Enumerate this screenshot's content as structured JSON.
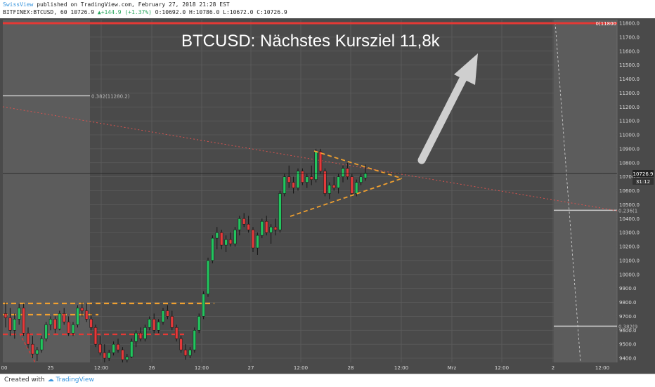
{
  "header": {
    "brand": "SwissView",
    "published": "published on TradingView.com, February 27, 2018 21:28 EST",
    "symbol": "BITFINEX:BTCUSD, 60",
    "last": "10726.9",
    "change": "+144.9 (+1.37%)",
    "ohlc": "O:10692.0 H:10786.0 L:10672.0 C:10726.9"
  },
  "footer": {
    "created_with": "Created with",
    "tv_logo": "TradingView"
  },
  "chart_data": {
    "type": "candlestick",
    "title": "BTCUSD: Nächstes Kursziel 11,8k",
    "ylim": [
      9370,
      11830
    ],
    "y_ticks": [
      9400,
      9500,
      9600,
      9700,
      9800,
      9900,
      10000,
      10100,
      10200,
      10300,
      10400,
      10500,
      10600,
      10700,
      10800,
      10900,
      11000,
      11100,
      11200,
      11300,
      11400,
      11500,
      11600,
      11700,
      11800
    ],
    "x_ticks": [
      "00",
      "25",
      "12:00",
      "26",
      "12:00",
      "27",
      "12:00",
      "28",
      "12:00",
      "Mrz",
      "12:00",
      "2",
      "12:00"
    ],
    "last_price": {
      "value": 10726.9,
      "label": "10726.9",
      "countdown": "31:12"
    },
    "target_level": {
      "value": 11800,
      "label": "0(11800"
    },
    "fib_levels": [
      {
        "label": "0.382(11280.2)",
        "value": 11280.2
      },
      {
        "label": "0.236(1",
        "value": 10460
      },
      {
        "label": "0.382(9",
        "value": 9630
      }
    ],
    "candles": [
      {
        "o": 9720,
        "h": 9800,
        "l": 9620,
        "c": 9690
      },
      {
        "o": 9690,
        "h": 9760,
        "l": 9560,
        "c": 9600
      },
      {
        "o": 9600,
        "h": 9720,
        "l": 9540,
        "c": 9680
      },
      {
        "o": 9680,
        "h": 9790,
        "l": 9640,
        "c": 9760
      },
      {
        "o": 9760,
        "h": 9790,
        "l": 9560,
        "c": 9580
      },
      {
        "o": 9580,
        "h": 9620,
        "l": 9470,
        "c": 9500
      },
      {
        "o": 9500,
        "h": 9560,
        "l": 9400,
        "c": 9430
      },
      {
        "o": 9430,
        "h": 9480,
        "l": 9380,
        "c": 9460
      },
      {
        "o": 9460,
        "h": 9560,
        "l": 9440,
        "c": 9540
      },
      {
        "o": 9540,
        "h": 9660,
        "l": 9520,
        "c": 9640
      },
      {
        "o": 9640,
        "h": 9700,
        "l": 9600,
        "c": 9680
      },
      {
        "o": 9680,
        "h": 9700,
        "l": 9580,
        "c": 9610
      },
      {
        "o": 9610,
        "h": 9740,
        "l": 9600,
        "c": 9720
      },
      {
        "o": 9720,
        "h": 9760,
        "l": 9640,
        "c": 9660
      },
      {
        "o": 9660,
        "h": 9700,
        "l": 9560,
        "c": 9580
      },
      {
        "o": 9580,
        "h": 9660,
        "l": 9560,
        "c": 9640
      },
      {
        "o": 9640,
        "h": 9780,
        "l": 9620,
        "c": 9760
      },
      {
        "o": 9760,
        "h": 9800,
        "l": 9700,
        "c": 9740
      },
      {
        "o": 9740,
        "h": 9790,
        "l": 9660,
        "c": 9680
      },
      {
        "o": 9680,
        "h": 9720,
        "l": 9600,
        "c": 9620
      },
      {
        "o": 9620,
        "h": 9640,
        "l": 9480,
        "c": 9500
      },
      {
        "o": 9500,
        "h": 9560,
        "l": 9420,
        "c": 9440
      },
      {
        "o": 9440,
        "h": 9500,
        "l": 9370,
        "c": 9400
      },
      {
        "o": 9400,
        "h": 9460,
        "l": 9380,
        "c": 9440
      },
      {
        "o": 9440,
        "h": 9520,
        "l": 9420,
        "c": 9500
      },
      {
        "o": 9500,
        "h": 9540,
        "l": 9440,
        "c": 9460
      },
      {
        "o": 9460,
        "h": 9480,
        "l": 9370,
        "c": 9390
      },
      {
        "o": 9390,
        "h": 9430,
        "l": 9370,
        "c": 9410
      },
      {
        "o": 9410,
        "h": 9540,
        "l": 9400,
        "c": 9520
      },
      {
        "o": 9520,
        "h": 9600,
        "l": 9480,
        "c": 9580
      },
      {
        "o": 9580,
        "h": 9620,
        "l": 9520,
        "c": 9540
      },
      {
        "o": 9540,
        "h": 9640,
        "l": 9520,
        "c": 9620
      },
      {
        "o": 9620,
        "h": 9700,
        "l": 9600,
        "c": 9680
      },
      {
        "o": 9680,
        "h": 9720,
        "l": 9580,
        "c": 9600
      },
      {
        "o": 9600,
        "h": 9680,
        "l": 9580,
        "c": 9660
      },
      {
        "o": 9660,
        "h": 9760,
        "l": 9640,
        "c": 9740
      },
      {
        "o": 9740,
        "h": 9780,
        "l": 9680,
        "c": 9700
      },
      {
        "o": 9700,
        "h": 9740,
        "l": 9600,
        "c": 9620
      },
      {
        "o": 9620,
        "h": 9640,
        "l": 9520,
        "c": 9540
      },
      {
        "o": 9540,
        "h": 9560,
        "l": 9440,
        "c": 9460
      },
      {
        "o": 9460,
        "h": 9500,
        "l": 9390,
        "c": 9420
      },
      {
        "o": 9420,
        "h": 9480,
        "l": 9400,
        "c": 9460
      },
      {
        "o": 9460,
        "h": 9620,
        "l": 9440,
        "c": 9600
      },
      {
        "o": 9600,
        "h": 9720,
        "l": 9580,
        "c": 9700
      },
      {
        "o": 9700,
        "h": 9880,
        "l": 9680,
        "c": 9860
      },
      {
        "o": 9860,
        "h": 10120,
        "l": 9840,
        "c": 10100
      },
      {
        "o": 10100,
        "h": 10280,
        "l": 10080,
        "c": 10260
      },
      {
        "o": 10260,
        "h": 10340,
        "l": 10180,
        "c": 10300
      },
      {
        "o": 10300,
        "h": 10320,
        "l": 10180,
        "c": 10210
      },
      {
        "o": 10210,
        "h": 10280,
        "l": 10160,
        "c": 10250
      },
      {
        "o": 10250,
        "h": 10300,
        "l": 10200,
        "c": 10220
      },
      {
        "o": 10220,
        "h": 10340,
        "l": 10200,
        "c": 10320
      },
      {
        "o": 10320,
        "h": 10420,
        "l": 10280,
        "c": 10400
      },
      {
        "o": 10400,
        "h": 10440,
        "l": 10340,
        "c": 10360
      },
      {
        "o": 10360,
        "h": 10420,
        "l": 10300,
        "c": 10320
      },
      {
        "o": 10320,
        "h": 10340,
        "l": 10160,
        "c": 10190
      },
      {
        "o": 10190,
        "h": 10300,
        "l": 10140,
        "c": 10280
      },
      {
        "o": 10280,
        "h": 10400,
        "l": 10260,
        "c": 10380
      },
      {
        "o": 10380,
        "h": 10420,
        "l": 10280,
        "c": 10300
      },
      {
        "o": 10300,
        "h": 10360,
        "l": 10220,
        "c": 10340
      },
      {
        "o": 10340,
        "h": 10400,
        "l": 10280,
        "c": 10320
      },
      {
        "o": 10320,
        "h": 10600,
        "l": 10300,
        "c": 10580
      },
      {
        "o": 10580,
        "h": 10720,
        "l": 10560,
        "c": 10700
      },
      {
        "o": 10700,
        "h": 10780,
        "l": 10620,
        "c": 10660
      },
      {
        "o": 10660,
        "h": 10700,
        "l": 10580,
        "c": 10620
      },
      {
        "o": 10620,
        "h": 10760,
        "l": 10600,
        "c": 10740
      },
      {
        "o": 10740,
        "h": 10760,
        "l": 10640,
        "c": 10660
      },
      {
        "o": 10660,
        "h": 10720,
        "l": 10620,
        "c": 10700
      },
      {
        "o": 10700,
        "h": 10780,
        "l": 10640,
        "c": 10680
      },
      {
        "o": 10680,
        "h": 10900,
        "l": 10660,
        "c": 10880
      },
      {
        "o": 10880,
        "h": 10900,
        "l": 10720,
        "c": 10740
      },
      {
        "o": 10740,
        "h": 10760,
        "l": 10560,
        "c": 10580
      },
      {
        "o": 10580,
        "h": 10660,
        "l": 10540,
        "c": 10640
      },
      {
        "o": 10640,
        "h": 10700,
        "l": 10600,
        "c": 10620
      },
      {
        "o": 10620,
        "h": 10720,
        "l": 10580,
        "c": 10700
      },
      {
        "o": 10700,
        "h": 10780,
        "l": 10660,
        "c": 10760
      },
      {
        "o": 10760,
        "h": 10800,
        "l": 10680,
        "c": 10700
      },
      {
        "o": 10700,
        "h": 10720,
        "l": 10560,
        "c": 10580
      },
      {
        "o": 10580,
        "h": 10680,
        "l": 10560,
        "c": 10660
      },
      {
        "o": 10660,
        "h": 10720,
        "l": 10640,
        "c": 10700
      },
      {
        "o": 10692,
        "h": 10786,
        "l": 10672,
        "c": 10726.9
      }
    ]
  }
}
